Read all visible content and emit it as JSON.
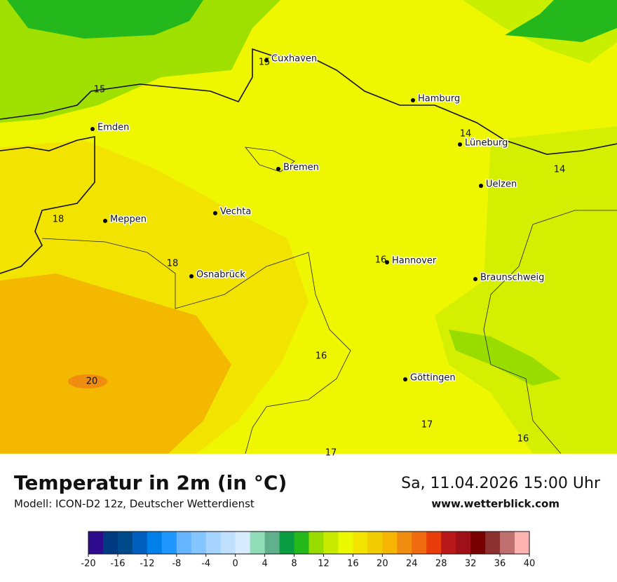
{
  "map": {
    "cities": [
      "Cuxhaven",
      "Hamburg",
      "Emden",
      "Lüneburg",
      "Bremen",
      "Uelzen",
      "Vechta",
      "Meppen",
      "Hannover",
      "Osnabrück",
      "Braunschweig",
      "Göttingen"
    ],
    "contour_labels": [
      15,
      15,
      14,
      14,
      18,
      18,
      16,
      16,
      20,
      17,
      17,
      16
    ]
  },
  "footer": {
    "title": "Temperatur in 2m (in °C)",
    "model": "Modell: ICON-D2 12z, Deutscher Wetterdienst",
    "datetime": "Sa, 11.04.2026 15:00 Uhr",
    "website": "www.wetterblick.com"
  },
  "colorbar": {
    "range": [
      -20,
      40
    ],
    "ticks": [
      -20,
      -16,
      -12,
      -8,
      -4,
      0,
      4,
      8,
      12,
      16,
      20,
      24,
      28,
      32,
      36,
      40
    ],
    "colors": [
      "#2e0a8c",
      "#003a80",
      "#004a8c",
      "#0060c0",
      "#0080e8",
      "#2096ff",
      "#64b4ff",
      "#84c4ff",
      "#a4d4ff",
      "#c0e0ff",
      "#d8ecff",
      "#90dcb8",
      "#60b08c",
      "#0a9c40",
      "#24b81c",
      "#98dc00",
      "#c8ec00",
      "#eaf800",
      "#f2e400",
      "#f0cc00",
      "#f5b500",
      "#f08c10",
      "#f06a10",
      "#e83c0a",
      "#b81818",
      "#a01018",
      "#780000",
      "#8c3030",
      "#c07070",
      "#ffb4b4"
    ]
  }
}
